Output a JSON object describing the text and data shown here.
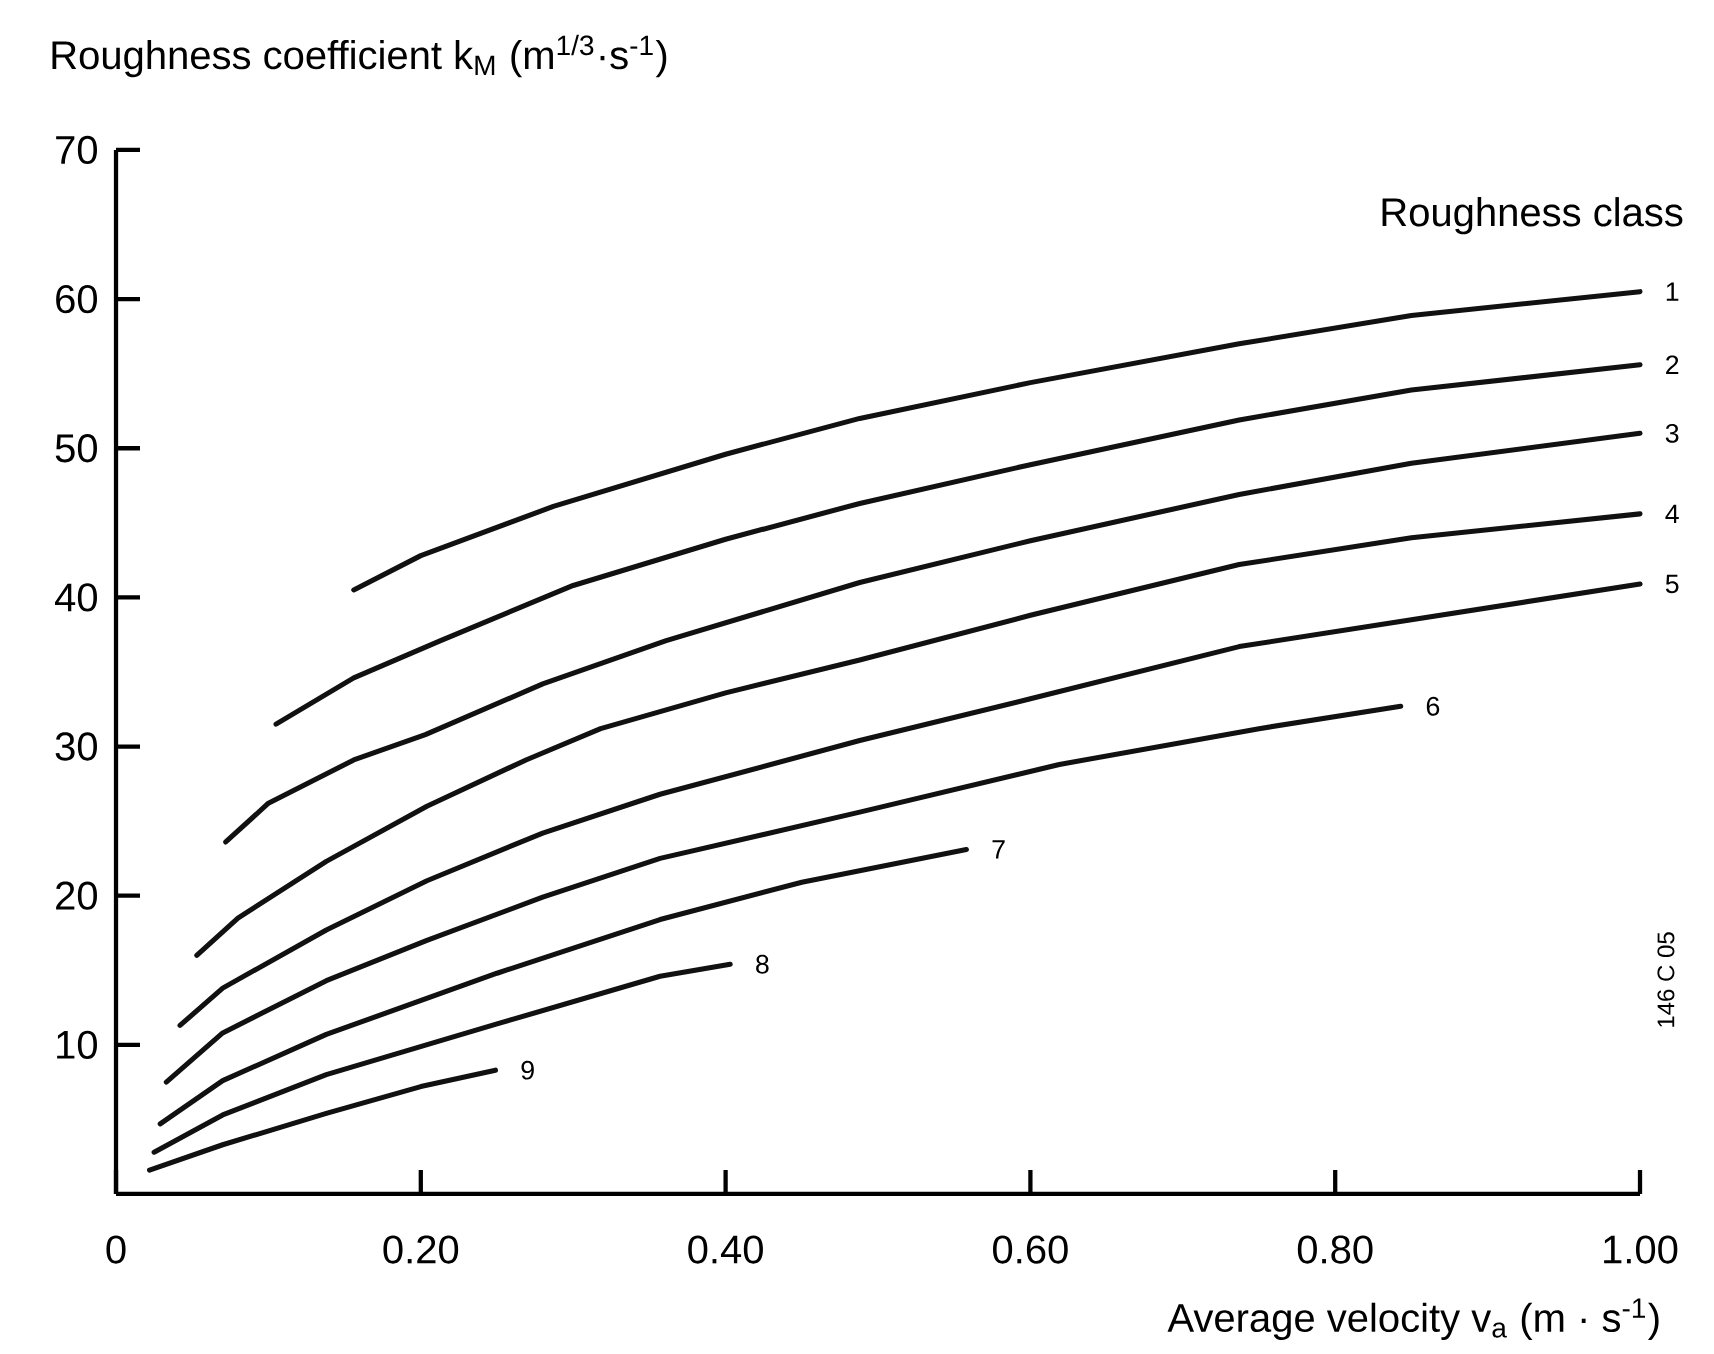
{
  "chart_data": {
    "type": "line",
    "xlabel": "Average velocity v$_{a}$  (m · s$^{-1}$)",
    "ylabel": "Roughness coefficient k$_{M}$ (m$^{1/3}$·s$^{-1}$)",
    "legend_title": "Roughness class",
    "annotations": [
      "146 C 05"
    ],
    "xlim": [
      0,
      1.0
    ],
    "ylim": [
      0,
      70
    ],
    "xticks": [
      0,
      {
        "value": 0.2,
        "label": "0.20"
      },
      {
        "value": 0.4,
        "label": "0.40"
      },
      {
        "value": 0.6,
        "label": "0.60"
      },
      {
        "value": 0.8,
        "label": "0.80"
      },
      {
        "value": 1.0,
        "label": "1.00"
      }
    ],
    "yticks": [
      10,
      20,
      30,
      40,
      50,
      60,
      70
    ],
    "series": [
      {
        "name": "1",
        "color": "#111111",
        "x": [
          0.156,
          0.2,
          0.287,
          0.4,
          0.488,
          0.6,
          0.737,
          0.85,
          1.0
        ],
        "values": [
          40.5,
          42.8,
          46.1,
          49.6,
          52.0,
          54.4,
          57.0,
          58.9,
          60.5
        ]
      },
      {
        "name": "2",
        "color": "#111111",
        "x": [
          0.105,
          0.156,
          0.213,
          0.3,
          0.4,
          0.488,
          0.6,
          0.737,
          0.85,
          1.0
        ],
        "values": [
          31.5,
          34.6,
          37.1,
          40.8,
          43.9,
          46.3,
          48.9,
          51.9,
          53.9,
          55.6
        ]
      },
      {
        "name": "3",
        "color": "#111111",
        "x": [
          0.072,
          0.1,
          0.156,
          0.203,
          0.28,
          0.361,
          0.488,
          0.6,
          0.737,
          0.85,
          1.0
        ],
        "values": [
          23.6,
          26.2,
          29.1,
          30.8,
          34.2,
          37.1,
          41.0,
          43.8,
          46.9,
          49.0,
          51.0
        ]
      },
      {
        "name": "4",
        "color": "#111111",
        "x": [
          0.053,
          0.08,
          0.138,
          0.204,
          0.269,
          0.318,
          0.4,
          0.488,
          0.6,
          0.737,
          0.85,
          1.0
        ],
        "values": [
          16.0,
          18.5,
          22.3,
          26.0,
          29.1,
          31.2,
          33.6,
          35.8,
          38.8,
          42.2,
          44.0,
          45.6
        ]
      },
      {
        "name": "5",
        "color": "#111111",
        "x": [
          0.042,
          0.07,
          0.138,
          0.204,
          0.28,
          0.357,
          0.488,
          0.6,
          0.737,
          0.85,
          1.0
        ],
        "values": [
          11.3,
          13.8,
          17.7,
          21.0,
          24.2,
          26.8,
          30.4,
          33.2,
          36.7,
          38.5,
          40.9
        ]
      },
      {
        "name": "6",
        "color": "#111111",
        "x": [
          0.033,
          0.07,
          0.138,
          0.204,
          0.28,
          0.357,
          0.488,
          0.619,
          0.75,
          0.843
        ],
        "values": [
          7.5,
          10.8,
          14.3,
          17.0,
          19.9,
          22.5,
          25.6,
          28.8,
          31.2,
          32.7
        ]
      },
      {
        "name": "7",
        "color": "#111111",
        "x": [
          0.029,
          0.07,
          0.138,
          0.25,
          0.357,
          0.45,
          0.558
        ],
        "values": [
          4.7,
          7.6,
          10.7,
          14.8,
          18.4,
          20.9,
          23.1
        ]
      },
      {
        "name": "8",
        "color": "#111111",
        "x": [
          0.025,
          0.07,
          0.138,
          0.25,
          0.357,
          0.403
        ],
        "values": [
          2.8,
          5.3,
          8.0,
          11.4,
          14.6,
          15.4
        ]
      },
      {
        "name": "9",
        "color": "#111111",
        "x": [
          0.022,
          0.07,
          0.138,
          0.2,
          0.249
        ],
        "values": [
          1.6,
          3.3,
          5.4,
          7.2,
          8.3
        ]
      }
    ]
  }
}
